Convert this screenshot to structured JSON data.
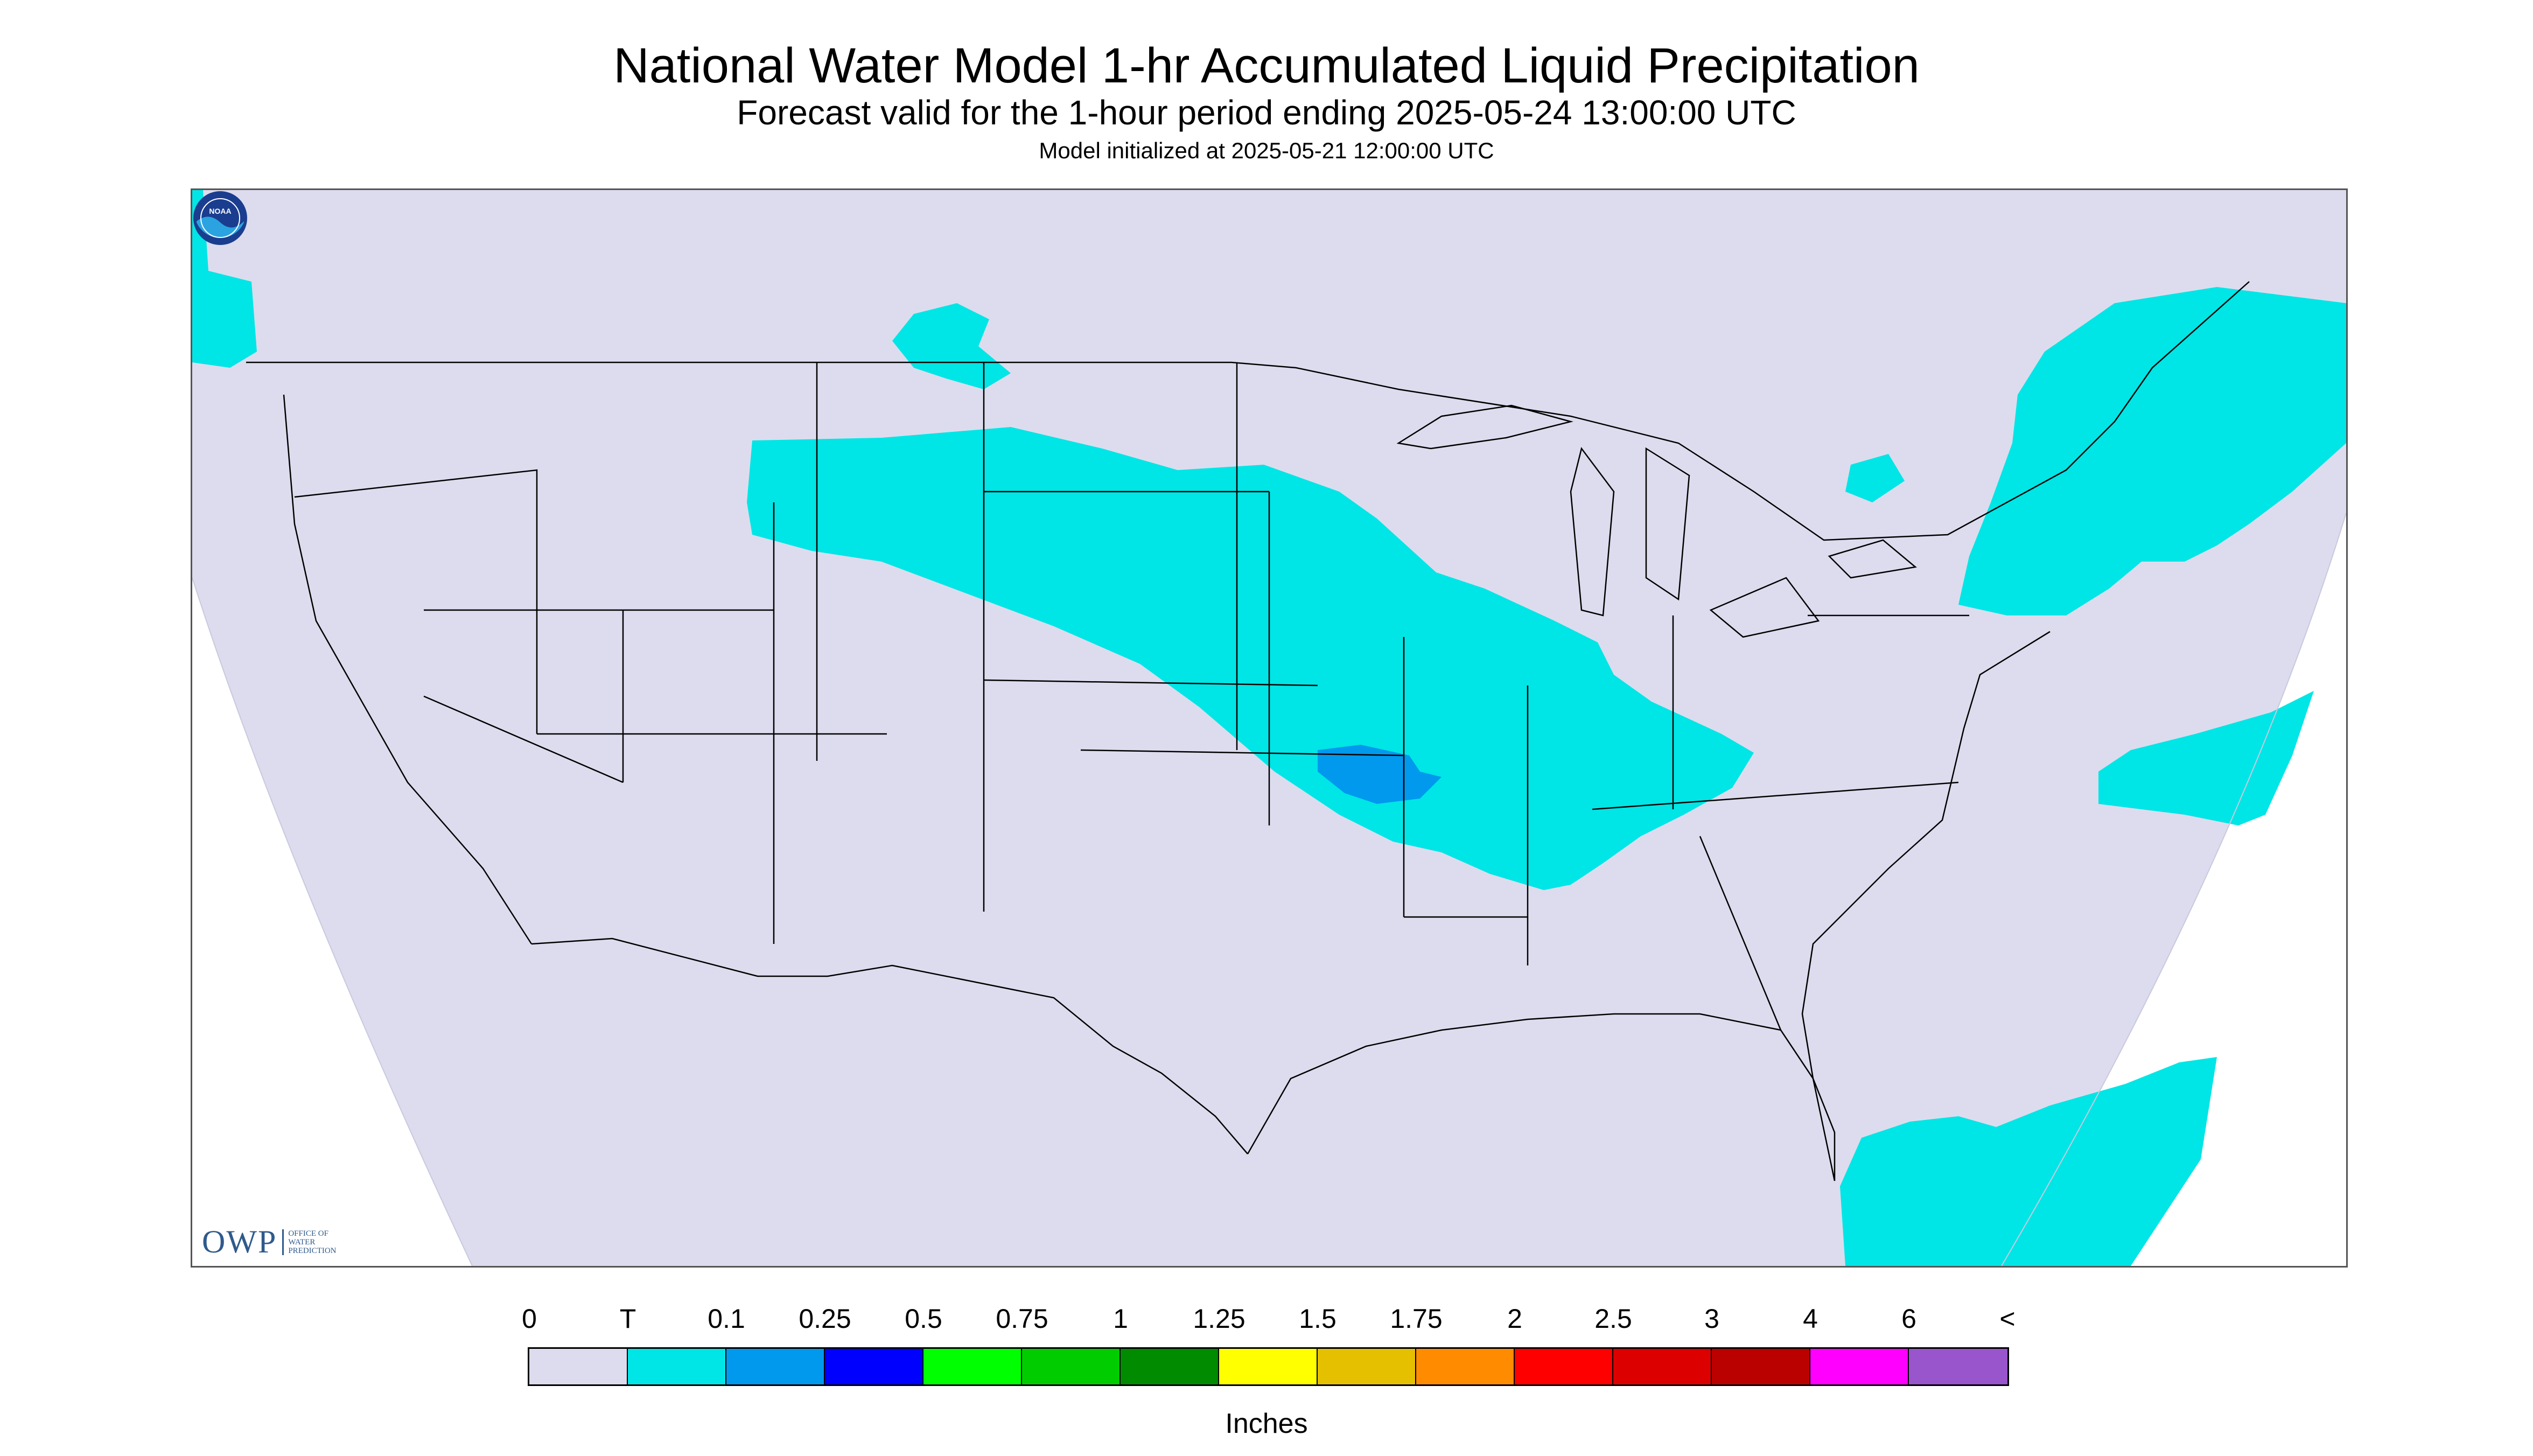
{
  "title": "National Water Model 1-hr Accumulated Liquid Precipitation",
  "subtitle": "Forecast valid for the 1-hour period ending 2025-05-24 13:00:00 UTC",
  "init_line": "Model initialized at 2025-05-21 12:00:00 UTC",
  "logos": {
    "owp": "OWP",
    "owp_subtitle": [
      "OFFICE OF",
      "WATER",
      "PREDICTION"
    ],
    "noaa": "NOAA"
  },
  "legend": {
    "unit_label": "Inches",
    "tick_labels": [
      "0",
      "T",
      "0.1",
      "0.25",
      "0.5",
      "0.75",
      "1",
      "1.25",
      "1.5",
      "1.75",
      "2",
      "2.5",
      "3",
      "4",
      "6",
      "<"
    ],
    "colors": [
      "#dcdcee",
      "#00e5e5",
      "#0099ee",
      "#0000ff",
      "#00ff00",
      "#00cc00",
      "#008b00",
      "#ffff00",
      "#e5c000",
      "#ff8c00",
      "#ff0000",
      "#dd0000",
      "#bb0000",
      "#ff00ff",
      "#9955cc"
    ]
  },
  "map": {
    "domain_color": "#dcdcee",
    "trace_color": "#00e5e5",
    "light_color": "#0099ee",
    "border_color": "#000000"
  }
}
